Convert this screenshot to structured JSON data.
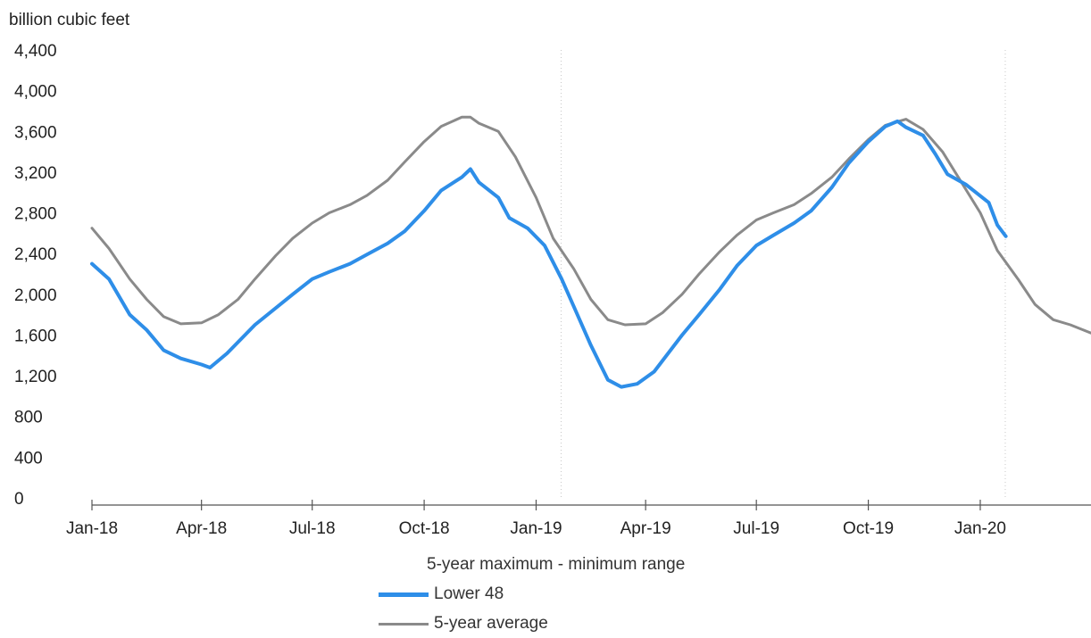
{
  "unit_label": "billion cubic feet",
  "legend": {
    "title": "5-year maximum - minimum range",
    "items": [
      {
        "label": "Lower 48",
        "color": "#2e8ee8"
      },
      {
        "label": "5-year average",
        "color": "#8a8a8a"
      }
    ]
  },
  "chart_data": {
    "type": "line",
    "ylabel": "billion cubic feet",
    "ylim": [
      0,
      4400
    ],
    "yticks": [
      "0",
      "400",
      "800",
      "1,200",
      "1,600",
      "2,000",
      "2,400",
      "2,800",
      "3,200",
      "3,600",
      "4,000",
      "4,400"
    ],
    "xlim": [
      "2018-01-01",
      "2020-04-01"
    ],
    "xticks": [
      {
        "label": "Jan-18",
        "date": "2018-01-01"
      },
      {
        "label": "Apr-18",
        "date": "2018-04-01"
      },
      {
        "label": "Jul-18",
        "date": "2018-07-01"
      },
      {
        "label": "Oct-18",
        "date": "2018-10-01"
      },
      {
        "label": "Jan-19",
        "date": "2019-01-01"
      },
      {
        "label": "Apr-19",
        "date": "2019-04-01"
      },
      {
        "label": "Jul-19",
        "date": "2019-07-01"
      },
      {
        "label": "Oct-19",
        "date": "2019-10-01"
      },
      {
        "label": "Jan-20",
        "date": "2020-01-01"
      }
    ],
    "year_dividers": [
      "2019-01-01",
      "2020-01-01"
    ],
    "series": [
      {
        "name": "Lower 48",
        "color": "#2e8ee8",
        "points": [
          [
            "2018-01-01",
            2300
          ],
          [
            "2018-01-15",
            2150
          ],
          [
            "2018-02-01",
            1800
          ],
          [
            "2018-02-15",
            1650
          ],
          [
            "2018-03-01",
            1450
          ],
          [
            "2018-03-15",
            1370
          ],
          [
            "2018-04-01",
            1310
          ],
          [
            "2018-04-08",
            1280
          ],
          [
            "2018-04-22",
            1420
          ],
          [
            "2018-05-15",
            1700
          ],
          [
            "2018-06-15",
            2000
          ],
          [
            "2018-07-01",
            2150
          ],
          [
            "2018-07-15",
            2220
          ],
          [
            "2018-08-01",
            2300
          ],
          [
            "2018-08-15",
            2390
          ],
          [
            "2018-09-01",
            2500
          ],
          [
            "2018-09-15",
            2620
          ],
          [
            "2018-10-01",
            2820
          ],
          [
            "2018-10-15",
            3020
          ],
          [
            "2018-11-01",
            3150
          ],
          [
            "2018-11-08",
            3230
          ],
          [
            "2018-11-15",
            3100
          ],
          [
            "2018-12-01",
            2950
          ],
          [
            "2018-12-10",
            2750
          ],
          [
            "2018-12-25",
            2650
          ],
          [
            "2019-01-08",
            2480
          ],
          [
            "2019-01-22",
            2150
          ],
          [
            "2019-02-01",
            1880
          ],
          [
            "2019-02-15",
            1500
          ],
          [
            "2019-03-01",
            1160
          ],
          [
            "2019-03-12",
            1090
          ],
          [
            "2019-03-25",
            1120
          ],
          [
            "2019-04-08",
            1240
          ],
          [
            "2019-05-01",
            1600
          ],
          [
            "2019-05-15",
            1800
          ],
          [
            "2019-06-01",
            2050
          ],
          [
            "2019-06-15",
            2280
          ],
          [
            "2019-07-01",
            2480
          ],
          [
            "2019-07-15",
            2580
          ],
          [
            "2019-08-01",
            2700
          ],
          [
            "2019-08-15",
            2820
          ],
          [
            "2019-09-01",
            3050
          ],
          [
            "2019-09-15",
            3290
          ],
          [
            "2019-10-01",
            3500
          ],
          [
            "2019-10-15",
            3650
          ],
          [
            "2019-10-25",
            3700
          ],
          [
            "2019-11-01",
            3640
          ],
          [
            "2019-11-15",
            3560
          ],
          [
            "2019-11-25",
            3380
          ],
          [
            "2019-12-05",
            3180
          ],
          [
            "2019-12-20",
            3080
          ],
          [
            "2020-01-08",
            2900
          ],
          [
            "2020-01-15",
            2680
          ],
          [
            "2020-01-22",
            2570
          ]
        ]
      },
      {
        "name": "5-year average",
        "color": "#8a8a8a",
        "points": [
          [
            "2018-01-01",
            2650
          ],
          [
            "2018-01-15",
            2450
          ],
          [
            "2018-02-01",
            2150
          ],
          [
            "2018-02-15",
            1950
          ],
          [
            "2018-03-01",
            1780
          ],
          [
            "2018-03-15",
            1710
          ],
          [
            "2018-04-01",
            1720
          ],
          [
            "2018-04-15",
            1800
          ],
          [
            "2018-05-01",
            1950
          ],
          [
            "2018-05-15",
            2150
          ],
          [
            "2018-06-01",
            2380
          ],
          [
            "2018-06-15",
            2550
          ],
          [
            "2018-07-01",
            2700
          ],
          [
            "2018-07-15",
            2800
          ],
          [
            "2018-08-01",
            2880
          ],
          [
            "2018-08-15",
            2970
          ],
          [
            "2018-09-01",
            3120
          ],
          [
            "2018-09-15",
            3300
          ],
          [
            "2018-10-01",
            3500
          ],
          [
            "2018-10-15",
            3650
          ],
          [
            "2018-11-01",
            3740
          ],
          [
            "2018-11-08",
            3740
          ],
          [
            "2018-11-15",
            3680
          ],
          [
            "2018-12-01",
            3600
          ],
          [
            "2018-12-15",
            3350
          ],
          [
            "2019-01-01",
            2950
          ],
          [
            "2019-01-15",
            2550
          ],
          [
            "2019-02-01",
            2250
          ],
          [
            "2019-02-15",
            1950
          ],
          [
            "2019-03-01",
            1750
          ],
          [
            "2019-03-15",
            1700
          ],
          [
            "2019-04-01",
            1710
          ],
          [
            "2019-04-15",
            1820
          ],
          [
            "2019-05-01",
            2000
          ],
          [
            "2019-05-15",
            2200
          ],
          [
            "2019-06-01",
            2420
          ],
          [
            "2019-06-15",
            2580
          ],
          [
            "2019-07-01",
            2730
          ],
          [
            "2019-07-15",
            2800
          ],
          [
            "2019-08-01",
            2880
          ],
          [
            "2019-08-15",
            2990
          ],
          [
            "2019-09-01",
            3150
          ],
          [
            "2019-09-15",
            3330
          ],
          [
            "2019-10-01",
            3520
          ],
          [
            "2019-10-15",
            3660
          ],
          [
            "2019-11-01",
            3720
          ],
          [
            "2019-11-15",
            3620
          ],
          [
            "2019-12-01",
            3400
          ],
          [
            "2019-12-15",
            3130
          ],
          [
            "2020-01-01",
            2800
          ],
          [
            "2020-01-15",
            2430
          ],
          [
            "2020-02-01",
            2150
          ],
          [
            "2020-02-15",
            1900
          ],
          [
            "2020-03-01",
            1750
          ],
          [
            "2020-03-15",
            1700
          ],
          [
            "2020-04-01",
            1620
          ]
        ]
      }
    ]
  }
}
